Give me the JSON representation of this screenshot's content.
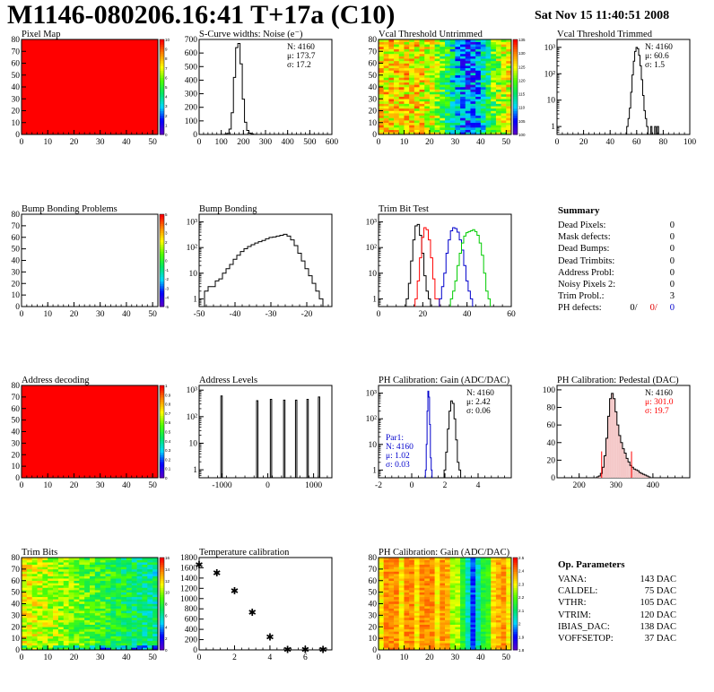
{
  "header": {
    "title": "M1146-080206.16:41 T+17a (C10)",
    "date": "Sat Nov 15 11:40:51 2008"
  },
  "colors": {
    "red": "#ff0000",
    "blue": "#0000cc",
    "green": "#00cc00",
    "black": "#000000"
  },
  "summary": {
    "title": "Summary",
    "rows": [
      {
        "label": "Dead Pixels:",
        "value": "0"
      },
      {
        "label": "Mask defects:",
        "value": "0"
      },
      {
        "label": "Dead Bumps:",
        "value": "0"
      },
      {
        "label": "Dead Trimbits:",
        "value": "0"
      },
      {
        "label": "Address Probl:",
        "value": "0"
      },
      {
        "label": "Noisy Pixels 2:",
        "value": "0"
      },
      {
        "label": "Trim Probl.:",
        "value": "3"
      }
    ],
    "ph_label": "PH defects:",
    "ph_values": [
      "0/",
      "0/",
      "0"
    ]
  },
  "op_parameters": {
    "title": "Op. Parameters",
    "rows": [
      {
        "label": "VANA:",
        "value": "143 DAC"
      },
      {
        "label": "CALDEL:",
        "value": "75 DAC"
      },
      {
        "label": "VTHR:",
        "value": "105 DAC"
      },
      {
        "label": "VTRIM:",
        "value": "120 DAC"
      },
      {
        "label": "IBIAS_DAC:",
        "value": "138 DAC"
      },
      {
        "label": "VOFFSETOP:",
        "value": "37 DAC"
      }
    ]
  },
  "chart_data": [
    {
      "id": "pixelmap",
      "type": "heatmap",
      "title": "Pixel Map",
      "xlim": [
        0,
        52
      ],
      "ylim": [
        0,
        80
      ],
      "xticks": [
        0,
        10,
        20,
        30,
        40,
        50
      ],
      "yticks": [
        0,
        10,
        20,
        30,
        40,
        50,
        60,
        70,
        80
      ],
      "fill": "uniform-max",
      "zscale": [
        0,
        1,
        2,
        3,
        4,
        5,
        6,
        7,
        8,
        9,
        10
      ],
      "zlabels": [
        "0",
        "1",
        "2",
        "3",
        "4",
        "5",
        "6",
        "7",
        "8",
        "9",
        "10"
      ]
    },
    {
      "id": "scurve",
      "type": "line",
      "title": "S-Curve widths: Noise (e⁻)",
      "xlim": [
        0,
        600
      ],
      "ylim": [
        0,
        700
      ],
      "xticks": [
        0,
        100,
        200,
        300,
        400,
        500,
        600
      ],
      "yticks": [
        0,
        100,
        200,
        300,
        400,
        500,
        600,
        700
      ],
      "x": [
        120,
        130,
        140,
        150,
        160,
        170,
        180,
        190,
        200,
        210,
        220,
        230,
        240,
        250
      ],
      "y": [
        2,
        8,
        40,
        160,
        420,
        640,
        670,
        520,
        260,
        90,
        30,
        10,
        4,
        1
      ],
      "stats": [
        "N: 4160",
        "μ: 173.7",
        "σ: 17.2"
      ]
    },
    {
      "id": "vcalun",
      "type": "heatmap",
      "title": "Vcal Threshold Untrimmed",
      "xlim": [
        0,
        52
      ],
      "ylim": [
        0,
        80
      ],
      "xticks": [
        0,
        10,
        20,
        30,
        40,
        50
      ],
      "yticks": [
        0,
        10,
        20,
        30,
        40,
        50,
        60,
        70,
        80
      ],
      "zlabels": [
        "100",
        "105",
        "110",
        "115",
        "120",
        "125",
        "130",
        "135"
      ]
    },
    {
      "id": "vcaltr",
      "type": "line",
      "title": "Vcal Threshold Trimmed",
      "logy": true,
      "xlim": [
        0,
        100
      ],
      "ylim": [
        0.5,
        2000
      ],
      "xticks": [
        0,
        20,
        40,
        60,
        80,
        100
      ],
      "yticks": [
        1,
        10,
        100,
        1000
      ],
      "yticklabels": [
        "1",
        "10",
        "10²",
        "10³"
      ],
      "x": [
        53,
        54,
        55,
        56,
        57,
        58,
        59,
        60,
        61,
        62,
        63,
        64,
        65,
        66,
        67,
        68
      ],
      "y": [
        1,
        2,
        5,
        20,
        90,
        300,
        700,
        1000,
        900,
        500,
        200,
        60,
        15,
        4,
        2,
        1
      ],
      "extra": {
        "x": [
          71,
          74,
          76
        ],
        "y": [
          1,
          1,
          1
        ]
      },
      "stats": [
        "N: 4160",
        "μ: 60.6",
        "σ:  1.5"
      ]
    },
    {
      "id": "bumpprob",
      "type": "heatmap",
      "title": "Bump Bonding Problems",
      "xlim": [
        0,
        52
      ],
      "ylim": [
        0,
        80
      ],
      "xticks": [
        0,
        10,
        20,
        30,
        40,
        50
      ],
      "yticks": [
        0,
        10,
        20,
        30,
        40,
        50,
        60,
        70,
        80
      ],
      "fill": "empty",
      "zlabels": [
        "-5",
        "-4",
        "-3",
        "-2",
        "-1",
        "0",
        "1",
        "2",
        "3",
        "4",
        "5"
      ]
    },
    {
      "id": "bump",
      "type": "line",
      "title": "Bump Bonding",
      "logy": true,
      "xlim": [
        -50,
        -13
      ],
      "ylim": [
        0.5,
        2000
      ],
      "xticks": [
        -50,
        -40,
        -30,
        -20
      ],
      "yticks": [
        1,
        10,
        100,
        1000
      ],
      "yticklabels": [
        "1",
        "10",
        "10²",
        "10³"
      ],
      "x": [
        -48,
        -47,
        -46,
        -45,
        -44,
        -43,
        -42,
        -41,
        -40,
        -39,
        -38,
        -37,
        -36,
        -35,
        -34,
        -33,
        -32,
        -31,
        -30,
        -29,
        -28,
        -27,
        -26,
        -25,
        -24,
        -23,
        -22,
        -21,
        -20,
        -19,
        -18,
        -17,
        -16
      ],
      "y": [
        2,
        3,
        3,
        5,
        6,
        10,
        15,
        22,
        35,
        50,
        70,
        90,
        110,
        130,
        150,
        170,
        190,
        220,
        250,
        260,
        280,
        300,
        330,
        280,
        200,
        120,
        60,
        30,
        15,
        8,
        4,
        2,
        1
      ]
    },
    {
      "id": "trimbit",
      "type": "line",
      "title": "Trim Bit Test",
      "logy": true,
      "xlim": [
        0,
        60
      ],
      "ylim": [
        0.5,
        2000
      ],
      "xticks": [
        0,
        20,
        40,
        60
      ],
      "yticks": [
        1,
        10,
        100,
        1000
      ],
      "yticklabels": [
        "1",
        "10",
        "10²",
        "10³"
      ],
      "series": [
        {
          "color": "black",
          "x": [
            13,
            14,
            15,
            16,
            17,
            18,
            19,
            20,
            21,
            22,
            23
          ],
          "y": [
            1,
            4,
            30,
            200,
            700,
            800,
            300,
            60,
            8,
            2,
            1
          ]
        },
        {
          "color": "red",
          "x": [
            17,
            18,
            19,
            20,
            21,
            22,
            23,
            24,
            25,
            26,
            27
          ],
          "y": [
            1,
            5,
            40,
            250,
            600,
            500,
            200,
            40,
            6,
            1,
            1
          ]
        },
        {
          "color": "blue",
          "x": [
            28,
            29,
            30,
            31,
            32,
            33,
            34,
            35,
            36,
            37,
            38,
            39,
            40,
            41,
            42
          ],
          "y": [
            1,
            3,
            10,
            60,
            200,
            450,
            600,
            550,
            400,
            200,
            80,
            20,
            5,
            2,
            1
          ]
        },
        {
          "color": "green",
          "x": [
            33,
            34,
            35,
            36,
            37,
            38,
            39,
            40,
            41,
            42,
            43,
            44,
            45,
            46,
            47,
            48,
            49,
            50
          ],
          "y": [
            1,
            2,
            5,
            20,
            60,
            150,
            280,
            380,
            420,
            450,
            500,
            420,
            300,
            150,
            50,
            10,
            2,
            1
          ]
        }
      ]
    },
    {
      "id": "addrdec",
      "type": "heatmap",
      "title": "Address decoding",
      "xlim": [
        0,
        52
      ],
      "ylim": [
        0,
        80
      ],
      "xticks": [
        0,
        10,
        20,
        30,
        40,
        50
      ],
      "yticks": [
        0,
        10,
        20,
        30,
        40,
        50,
        60,
        70,
        80
      ],
      "fill": "uniform-max",
      "zlabels": [
        "0",
        "0.1",
        "0.2",
        "0.3",
        "0.4",
        "0.5",
        "0.6",
        "0.7",
        "0.8",
        "0.9",
        "1"
      ]
    },
    {
      "id": "addrlev",
      "type": "line",
      "title": "Address Levels",
      "logy": true,
      "xlim": [
        -1500,
        1400
      ],
      "ylim": [
        0.5,
        1500
      ],
      "xticks": [
        -1000,
        0,
        1000
      ],
      "yticks": [
        1,
        10,
        100,
        1000
      ],
      "yticklabels": [
        "1",
        "10",
        "10²",
        "10³"
      ],
      "peaks": [
        {
          "x": -1010,
          "y": 600
        },
        {
          "x": -230,
          "y": 400
        },
        {
          "x": 70,
          "y": 450
        },
        {
          "x": 360,
          "y": 420
        },
        {
          "x": 620,
          "y": 420
        },
        {
          "x": 870,
          "y": 450
        },
        {
          "x": 1120,
          "y": 550
        }
      ]
    },
    {
      "id": "phgain",
      "type": "line",
      "title": "PH Calibration: Gain (ADC/DAC)",
      "logy": true,
      "xlim": [
        -2,
        6
      ],
      "ylim": [
        0.5,
        2000
      ],
      "xticks": [
        -2,
        0,
        2,
        4
      ],
      "yticks": [
        1,
        10,
        100,
        1000
      ],
      "yticklabels": [
        "1",
        "10",
        "10²",
        "10³"
      ],
      "series": [
        {
          "color": "black",
          "x": [
            2.0,
            2.1,
            2.2,
            2.3,
            2.4,
            2.5,
            2.6,
            2.7,
            2.8,
            2.9
          ],
          "y": [
            1,
            5,
            40,
            200,
            500,
            400,
            100,
            15,
            2,
            1
          ]
        },
        {
          "color": "blue",
          "x": [
            0.85,
            0.9,
            0.95,
            1.0,
            1.05,
            1.1,
            1.15,
            1.2
          ],
          "y": [
            1,
            10,
            200,
            1200,
            700,
            60,
            3,
            1
          ]
        }
      ],
      "stats": [
        "N: 4160",
        "μ: 2.42",
        "σ: 0.06"
      ],
      "stats2": [
        "Par1:",
        "N: 4160",
        "μ: 1.02",
        "σ: 0.03"
      ]
    },
    {
      "id": "phped",
      "type": "line",
      "title": "PH Calibration: Pedestal (DAC)",
      "xlim": [
        140,
        500
      ],
      "ylim": [
        0,
        105
      ],
      "xticks": [
        200,
        300,
        400
      ],
      "yticks": [
        0,
        20,
        40,
        60,
        80,
        100
      ],
      "x": [
        250,
        255,
        260,
        265,
        270,
        275,
        280,
        285,
        290,
        295,
        300,
        305,
        310,
        315,
        320,
        325,
        330,
        335,
        340,
        345,
        350,
        355,
        360,
        365,
        370,
        375,
        380,
        385,
        390
      ],
      "y": [
        1,
        2,
        5,
        12,
        25,
        45,
        70,
        90,
        96,
        90,
        75,
        60,
        48,
        40,
        33,
        28,
        22,
        18,
        14,
        12,
        10,
        9,
        8,
        6,
        5,
        4,
        3,
        2,
        1
      ],
      "fit_lines": [
        261,
        342
      ],
      "stats": [
        "N: 4160",
        "μ: 301.0",
        "σ: 19.7"
      ]
    },
    {
      "id": "trimbits",
      "type": "heatmap",
      "title": "Trim Bits",
      "xlim": [
        0,
        52
      ],
      "ylim": [
        0,
        80
      ],
      "xticks": [
        0,
        10,
        20,
        30,
        40,
        50
      ],
      "yticks": [
        0,
        10,
        20,
        30,
        40,
        50,
        60,
        70,
        80
      ],
      "zlabels": [
        "0",
        "2",
        "4",
        "6",
        "8",
        "10",
        "12",
        "14",
        "16"
      ]
    },
    {
      "id": "tempcal",
      "type": "scatter",
      "title": "Temperature calibration",
      "xlim": [
        0,
        7.5
      ],
      "ylim": [
        0,
        1800
      ],
      "xticks": [
        0,
        2,
        4,
        6
      ],
      "yticks": [
        0,
        200,
        400,
        600,
        800,
        1000,
        1200,
        1400,
        1600,
        1800
      ],
      "x": [
        0,
        1,
        2,
        3,
        4,
        5,
        6,
        7
      ],
      "y": [
        1660,
        1500,
        1150,
        730,
        250,
        10,
        10,
        10
      ]
    },
    {
      "id": "phgain2",
      "type": "heatmap",
      "title": "PH Calibration: Gain (ADC/DAC)",
      "xlim": [
        0,
        52
      ],
      "ylim": [
        0,
        80
      ],
      "xticks": [
        0,
        10,
        20,
        30,
        40,
        50
      ],
      "yticks": [
        0,
        10,
        20,
        30,
        40,
        50,
        60,
        70,
        80
      ],
      "zlabels": [
        "1.8",
        "1.9",
        "2",
        "2.1",
        "2.2",
        "2.3",
        "2.4",
        "2.5"
      ]
    }
  ]
}
